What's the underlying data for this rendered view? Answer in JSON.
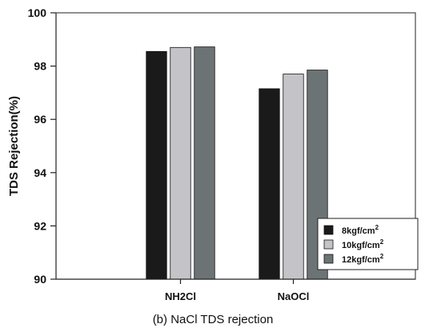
{
  "chart_data": {
    "type": "bar",
    "categories": [
      "NH2Cl",
      "NaOCl"
    ],
    "series": [
      {
        "name": "8kgf/cm",
        "name_sup": "2",
        "color": "#1a1a1a",
        "values": [
          98.55,
          97.15
        ]
      },
      {
        "name": "10kgf/cm",
        "name_sup": "2",
        "color": "#c4c4c8",
        "values": [
          98.7,
          97.7
        ]
      },
      {
        "name": "12kgf/cm",
        "name_sup": "2",
        "color": "#6b7375",
        "values": [
          98.72,
          97.85
        ]
      }
    ],
    "ylabel": "TDS Rejection(%)",
    "xlabel": "",
    "ylim": [
      90,
      100
    ],
    "yticks": [
      90,
      92,
      94,
      96,
      98,
      100
    ],
    "grid": false,
    "legend_position": "bottom-right",
    "caption": "(b) NaCl TDS rejection"
  }
}
